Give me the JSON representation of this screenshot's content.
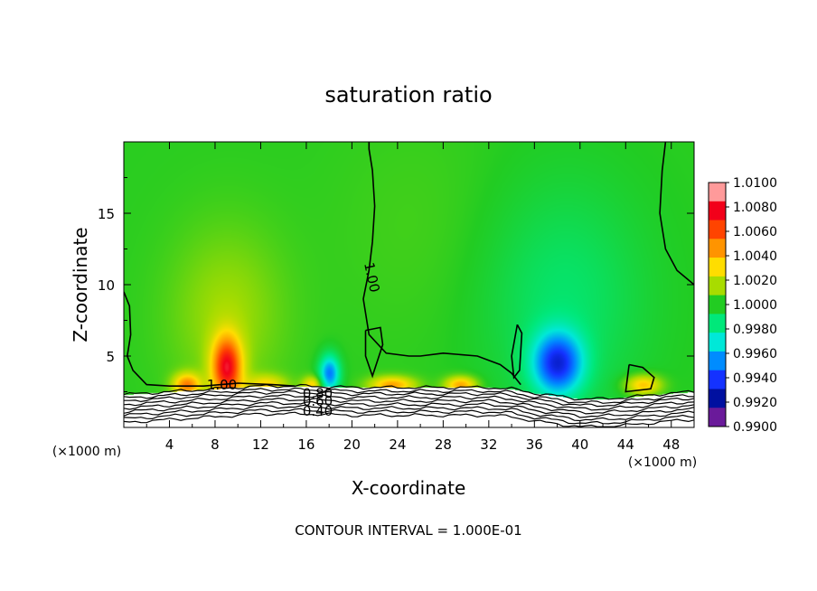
{
  "chart_data": {
    "type": "heatmap",
    "title": "saturation ratio",
    "xlabel": "X-coordinate",
    "ylabel": "Z-coordinate",
    "x_unit": "(×1000 m)",
    "z_unit": "(×1000 m)",
    "xlim": [
      0,
      50
    ],
    "ylim": [
      0,
      20
    ],
    "x_ticks": [
      4,
      8,
      12,
      16,
      20,
      24,
      28,
      32,
      36,
      40,
      44,
      48
    ],
    "y_ticks": [
      5,
      10,
      15
    ],
    "colorbar": {
      "range": [
        0.99,
        1.01
      ],
      "labels": [
        "1.0100",
        "1.0080",
        "1.0060",
        "1.0040",
        "1.0020",
        "1.0000",
        "0.9980",
        "0.9960",
        "0.9940",
        "0.9920",
        "0.9900"
      ],
      "colors": [
        "#ff9a9a",
        "#f2001a",
        "#ff4400",
        "#ff9400",
        "#ffdd00",
        "#a8dc00",
        "#22cc22",
        "#00e87a",
        "#00e8d8",
        "#008cff",
        "#1432ff",
        "#0010a0",
        "#6a1a9a"
      ]
    },
    "contour_labels": [
      "1.00",
      "1.00",
      "0.80",
      "0.60",
      "0.40"
    ],
    "contour_interval_text": "CONTOUR INTERVAL = 1.000E-01",
    "blobs": [
      {
        "x": 9.0,
        "z": 4.2,
        "value": 1.0075,
        "sx": 1.3,
        "sz": 2.2
      },
      {
        "x": 9.0,
        "z": 8.0,
        "value": 1.0015,
        "sx": 5.0,
        "sz": 6.0
      },
      {
        "x": 5.5,
        "z": 3.0,
        "value": 1.005,
        "sx": 1.2,
        "sz": 0.8
      },
      {
        "x": 12.5,
        "z": 3.0,
        "value": 1.003,
        "sx": 1.8,
        "sz": 0.7
      },
      {
        "x": 16.5,
        "z": 3.0,
        "value": 1.0035,
        "sx": 0.9,
        "sz": 0.6
      },
      {
        "x": 23.5,
        "z": 3.0,
        "value": 1.0045,
        "sx": 2.0,
        "sz": 0.6
      },
      {
        "x": 29.5,
        "z": 3.0,
        "value": 1.0045,
        "sx": 1.4,
        "sz": 0.6
      },
      {
        "x": 45.5,
        "z": 3.0,
        "value": 1.004,
        "sx": 1.6,
        "sz": 0.7
      },
      {
        "x": 18.0,
        "z": 3.8,
        "value": 0.9945,
        "sx": 0.9,
        "sz": 1.3
      },
      {
        "x": 38.0,
        "z": 4.5,
        "value": 0.9935,
        "sx": 2.2,
        "sz": 2.2
      },
      {
        "x": 38.5,
        "z": 9.0,
        "value": 0.9985,
        "sx": 7.0,
        "sz": 8.0
      },
      {
        "x": 26.0,
        "z": 14.0,
        "value": 1.0003,
        "sx": 8.0,
        "sz": 8.0
      }
    ],
    "ground_profile": [
      [
        0,
        2.3
      ],
      [
        4,
        2.5
      ],
      [
        8,
        2.7
      ],
      [
        12,
        2.9
      ],
      [
        16,
        2.9
      ],
      [
        20,
        2.8
      ],
      [
        24,
        2.8
      ],
      [
        28,
        2.8
      ],
      [
        32,
        2.8
      ],
      [
        34,
        2.7
      ],
      [
        36,
        2.4
      ],
      [
        38,
        2.2
      ],
      [
        40,
        2.0
      ],
      [
        42,
        2.0
      ],
      [
        44,
        2.1
      ],
      [
        48,
        2.4
      ],
      [
        50,
        2.5
      ]
    ],
    "contour_100_lines": [
      [
        [
          21.5,
          20
        ],
        [
          21.5,
          19.5
        ],
        [
          21.8,
          18.0
        ],
        [
          22.0,
          15.5
        ],
        [
          21.8,
          13.0
        ],
        [
          21.5,
          11.0
        ],
        [
          21.0,
          9.0
        ],
        [
          21.5,
          6.5
        ],
        [
          23.0,
          5.2
        ],
        [
          25.0,
          5.0
        ],
        [
          26.0,
          5.0
        ],
        [
          28.0,
          5.2
        ],
        [
          31.0,
          5.0
        ],
        [
          33.0,
          4.4
        ],
        [
          34.0,
          3.8
        ],
        [
          34.8,
          3.0
        ]
      ],
      [
        [
          0,
          9.5
        ],
        [
          0.5,
          8.5
        ],
        [
          0.6,
          6.5
        ],
        [
          0.3,
          5.0
        ],
        [
          0.8,
          4.0
        ],
        [
          2.0,
          3.0
        ],
        [
          4.0,
          2.9
        ],
        [
          7.0,
          2.9
        ],
        [
          10.0,
          3.1
        ],
        [
          13.0,
          3.0
        ],
        [
          15.0,
          2.9
        ]
      ],
      [
        [
          47.5,
          20
        ],
        [
          47.2,
          18.0
        ],
        [
          47.0,
          15.0
        ],
        [
          47.5,
          12.5
        ],
        [
          48.5,
          11.0
        ],
        [
          50,
          10.0
        ]
      ],
      [
        [
          21.2,
          6.8
        ],
        [
          22.5,
          7.0
        ],
        [
          22.7,
          5.8
        ],
        [
          21.8,
          3.6
        ],
        [
          21.2,
          5.0
        ],
        [
          21.2,
          6.8
        ]
      ],
      [
        [
          34.5,
          7.2
        ],
        [
          34.9,
          6.6
        ],
        [
          34.7,
          4.0
        ],
        [
          34.2,
          3.5
        ],
        [
          34.0,
          5.0
        ],
        [
          34.5,
          7.2
        ]
      ],
      [
        [
          44.3,
          4.4
        ],
        [
          45.5,
          4.2
        ],
        [
          46.5,
          3.5
        ],
        [
          46.2,
          2.7
        ],
        [
          44.0,
          2.5
        ],
        [
          44.3,
          4.4
        ]
      ]
    ]
  }
}
